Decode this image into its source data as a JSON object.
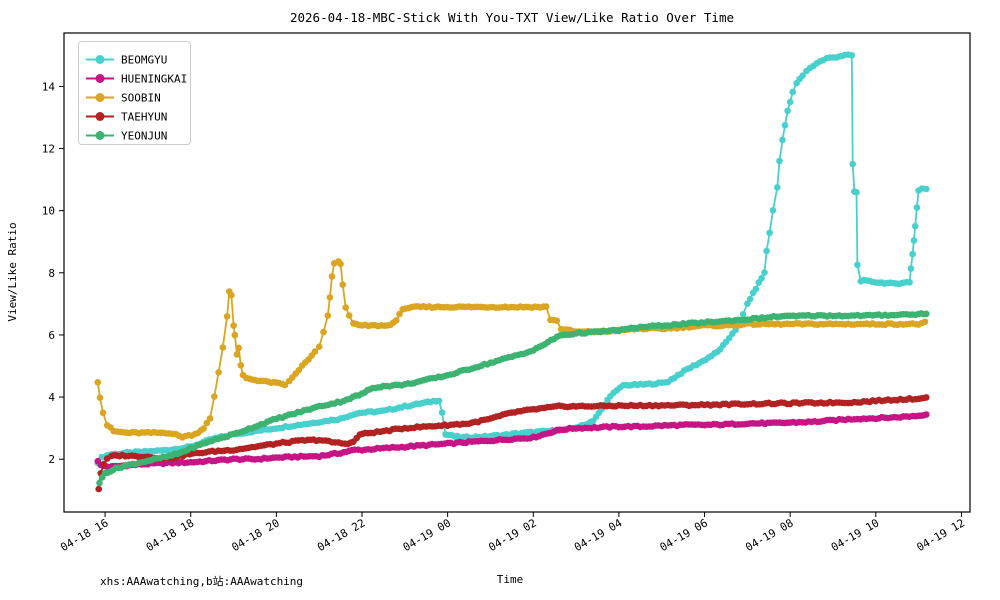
{
  "page": {
    "background": "#ffffff"
  },
  "chart_data": {
    "type": "line",
    "title": "2026-04-18-MBC-Stick With You-TXT View/Like Ratio Over Time",
    "xlabel": "Time",
    "ylabel": "View/Like Ratio",
    "watermark": "xhs:AAAwatching,b站:AAAwatching",
    "grid": false,
    "legend_position": "upper left",
    "marker": "circle",
    "x_unit": "hours since 2026-04-18 00:00",
    "x_range_hours": [
      15.04,
      36.2
    ],
    "y_axis": {
      "range": [
        0.3,
        15.72
      ],
      "ticks": [
        2,
        4,
        6,
        8,
        10,
        12,
        14
      ]
    },
    "x_axis": {
      "ticks": [
        {
          "hour": 16,
          "label": "04-18 16"
        },
        {
          "hour": 18,
          "label": "04-18 18"
        },
        {
          "hour": 20,
          "label": "04-18 20"
        },
        {
          "hour": 22,
          "label": "04-18 22"
        },
        {
          "hour": 24,
          "label": "04-19 00"
        },
        {
          "hour": 26,
          "label": "04-19 02"
        },
        {
          "hour": 28,
          "label": "04-19 04"
        },
        {
          "hour": 30,
          "label": "04-19 06"
        },
        {
          "hour": 32,
          "label": "04-19 08"
        },
        {
          "hour": 34,
          "label": "04-19 10"
        },
        {
          "hour": 36,
          "label": "04-19 12"
        }
      ]
    },
    "series": [
      {
        "name": "BEOMGYU",
        "color": "#48d1cc",
        "points": [
          [
            15.83,
            1.9
          ],
          [
            15.92,
            2.05
          ],
          [
            16.1,
            2.15
          ],
          [
            16.5,
            2.2
          ],
          [
            17.0,
            2.25
          ],
          [
            17.5,
            2.3
          ],
          [
            18.0,
            2.4
          ],
          [
            18.5,
            2.65
          ],
          [
            19.0,
            2.8
          ],
          [
            19.5,
            2.9
          ],
          [
            20.0,
            3.0
          ],
          [
            20.5,
            3.1
          ],
          [
            21.0,
            3.2
          ],
          [
            21.5,
            3.3
          ],
          [
            21.8,
            3.45
          ],
          [
            22.0,
            3.5
          ],
          [
            22.5,
            3.55
          ],
          [
            23.0,
            3.7
          ],
          [
            23.4,
            3.8
          ],
          [
            23.8,
            3.9
          ],
          [
            23.87,
            3.5
          ],
          [
            23.95,
            2.8
          ],
          [
            24.3,
            2.7
          ],
          [
            24.8,
            2.72
          ],
          [
            25.3,
            2.78
          ],
          [
            25.8,
            2.85
          ],
          [
            26.3,
            2.9
          ],
          [
            26.8,
            2.95
          ],
          [
            27.2,
            3.1
          ],
          [
            27.4,
            3.25
          ],
          [
            27.6,
            3.6
          ],
          [
            27.8,
            4.05
          ],
          [
            27.95,
            4.2
          ],
          [
            28.1,
            4.38
          ],
          [
            28.5,
            4.4
          ],
          [
            29.0,
            4.45
          ],
          [
            29.15,
            4.5
          ],
          [
            29.6,
            4.9
          ],
          [
            29.95,
            5.15
          ],
          [
            30.3,
            5.45
          ],
          [
            30.5,
            5.75
          ],
          [
            30.65,
            6.05
          ],
          [
            30.8,
            6.3
          ],
          [
            30.9,
            6.65
          ],
          [
            31.0,
            7.0
          ],
          [
            31.2,
            7.5
          ],
          [
            31.4,
            8.0
          ],
          [
            31.45,
            8.7
          ],
          [
            31.52,
            9.3
          ],
          [
            31.6,
            10.0
          ],
          [
            31.7,
            10.75
          ],
          [
            31.75,
            11.6
          ],
          [
            31.82,
            12.3
          ],
          [
            31.94,
            13.2
          ],
          [
            32.0,
            13.5
          ],
          [
            32.06,
            13.8
          ],
          [
            32.15,
            14.1
          ],
          [
            32.29,
            14.35
          ],
          [
            32.38,
            14.5
          ],
          [
            32.62,
            14.75
          ],
          [
            32.85,
            14.9
          ],
          [
            33.08,
            14.95
          ],
          [
            33.27,
            15.0
          ],
          [
            33.44,
            15.0
          ],
          [
            33.46,
            11.5
          ],
          [
            33.5,
            10.6
          ],
          [
            33.55,
            10.6
          ],
          [
            33.57,
            8.25
          ],
          [
            33.65,
            7.75
          ],
          [
            34.0,
            7.7
          ],
          [
            34.4,
            7.65
          ],
          [
            34.79,
            7.7
          ],
          [
            34.82,
            8.15
          ],
          [
            34.86,
            8.6
          ],
          [
            34.89,
            9.05
          ],
          [
            34.92,
            9.5
          ],
          [
            34.96,
            10.1
          ],
          [
            35.0,
            10.65
          ],
          [
            35.08,
            10.7
          ],
          [
            35.18,
            10.7
          ]
        ]
      },
      {
        "name": "HUENINGKAI",
        "color": "#c71585",
        "points": [
          [
            15.83,
            1.95
          ],
          [
            15.9,
            1.8
          ],
          [
            16.1,
            1.75
          ],
          [
            16.5,
            1.8
          ],
          [
            17.0,
            1.85
          ],
          [
            17.5,
            1.88
          ],
          [
            18.0,
            1.9
          ],
          [
            18.5,
            1.95
          ],
          [
            19.0,
            2.0
          ],
          [
            19.5,
            2.0
          ],
          [
            20.0,
            2.05
          ],
          [
            20.5,
            2.08
          ],
          [
            21.0,
            2.1
          ],
          [
            21.5,
            2.2
          ],
          [
            21.83,
            2.3
          ],
          [
            22.0,
            2.3
          ],
          [
            22.5,
            2.35
          ],
          [
            23.0,
            2.4
          ],
          [
            23.5,
            2.45
          ],
          [
            24.0,
            2.5
          ],
          [
            24.5,
            2.55
          ],
          [
            25.0,
            2.6
          ],
          [
            25.5,
            2.65
          ],
          [
            26.0,
            2.7
          ],
          [
            26.62,
            2.95
          ],
          [
            27.0,
            3.0
          ],
          [
            27.5,
            3.02
          ],
          [
            28.0,
            3.05
          ],
          [
            28.5,
            3.05
          ],
          [
            29.0,
            3.08
          ],
          [
            29.5,
            3.1
          ],
          [
            30.0,
            3.1
          ],
          [
            30.5,
            3.12
          ],
          [
            31.0,
            3.15
          ],
          [
            31.75,
            3.16
          ],
          [
            32.0,
            3.18
          ],
          [
            32.5,
            3.2
          ],
          [
            33.0,
            3.25
          ],
          [
            33.5,
            3.3
          ],
          [
            34.0,
            3.32
          ],
          [
            34.5,
            3.35
          ],
          [
            35.0,
            3.4
          ],
          [
            35.18,
            3.45
          ]
        ]
      },
      {
        "name": "SOOBIN",
        "color": "#daa520",
        "points": [
          [
            15.83,
            4.5
          ],
          [
            15.88,
            4.0
          ],
          [
            15.95,
            3.5
          ],
          [
            16.05,
            3.1
          ],
          [
            16.2,
            2.9
          ],
          [
            16.5,
            2.85
          ],
          [
            17.0,
            2.85
          ],
          [
            17.5,
            2.85
          ],
          [
            17.8,
            2.72
          ],
          [
            18.1,
            2.8
          ],
          [
            18.3,
            3.0
          ],
          [
            18.45,
            3.3
          ],
          [
            18.55,
            4.0
          ],
          [
            18.65,
            4.8
          ],
          [
            18.75,
            5.6
          ],
          [
            18.85,
            6.6
          ],
          [
            18.9,
            7.4
          ],
          [
            18.95,
            7.3
          ],
          [
            19.0,
            6.3
          ],
          [
            19.03,
            6.0
          ],
          [
            19.08,
            5.35
          ],
          [
            19.12,
            5.6
          ],
          [
            19.17,
            5.0
          ],
          [
            19.22,
            4.7
          ],
          [
            19.3,
            4.6
          ],
          [
            19.5,
            4.55
          ],
          [
            19.75,
            4.5
          ],
          [
            20.0,
            4.45
          ],
          [
            20.2,
            4.4
          ],
          [
            20.3,
            4.5
          ],
          [
            20.45,
            4.75
          ],
          [
            20.6,
            5.0
          ],
          [
            20.75,
            5.2
          ],
          [
            20.9,
            5.45
          ],
          [
            21.0,
            5.6
          ],
          [
            21.1,
            6.1
          ],
          [
            21.2,
            6.6
          ],
          [
            21.25,
            7.2
          ],
          [
            21.3,
            7.9
          ],
          [
            21.35,
            8.3
          ],
          [
            21.45,
            8.35
          ],
          [
            21.5,
            8.3
          ],
          [
            21.55,
            7.6
          ],
          [
            21.62,
            6.9
          ],
          [
            21.7,
            6.65
          ],
          [
            21.8,
            6.35
          ],
          [
            22.0,
            6.3
          ],
          [
            22.3,
            6.3
          ],
          [
            22.6,
            6.3
          ],
          [
            22.8,
            6.45
          ],
          [
            22.95,
            6.85
          ],
          [
            23.3,
            6.9
          ],
          [
            23.7,
            6.9
          ],
          [
            24.2,
            6.9
          ],
          [
            24.7,
            6.9
          ],
          [
            25.2,
            6.9
          ],
          [
            25.7,
            6.9
          ],
          [
            26.1,
            6.9
          ],
          [
            26.3,
            6.9
          ],
          [
            26.4,
            6.5
          ],
          [
            26.55,
            6.45
          ],
          [
            26.65,
            6.2
          ],
          [
            27.0,
            6.1
          ],
          [
            27.5,
            6.1
          ],
          [
            28.0,
            6.15
          ],
          [
            28.5,
            6.2
          ],
          [
            29.0,
            6.2
          ],
          [
            29.5,
            6.25
          ],
          [
            30.0,
            6.3
          ],
          [
            30.5,
            6.3
          ],
          [
            31.0,
            6.35
          ],
          [
            31.5,
            6.35
          ],
          [
            32.0,
            6.35
          ],
          [
            32.5,
            6.35
          ],
          [
            33.0,
            6.35
          ],
          [
            33.5,
            6.35
          ],
          [
            34.0,
            6.35
          ],
          [
            34.5,
            6.35
          ],
          [
            35.0,
            6.35
          ],
          [
            35.15,
            6.4
          ]
        ]
      },
      {
        "name": "TAEHYUN",
        "color": "#b22222",
        "points": [
          [
            15.85,
            1.05
          ],
          [
            15.9,
            1.55
          ],
          [
            15.97,
            1.85
          ],
          [
            16.05,
            2.0
          ],
          [
            16.15,
            2.1
          ],
          [
            16.4,
            2.12
          ],
          [
            16.7,
            2.1
          ],
          [
            17.0,
            2.08
          ],
          [
            17.3,
            2.02
          ],
          [
            17.6,
            2.05
          ],
          [
            17.9,
            2.15
          ],
          [
            18.2,
            2.2
          ],
          [
            18.5,
            2.25
          ],
          [
            19.0,
            2.3
          ],
          [
            19.5,
            2.4
          ],
          [
            20.0,
            2.5
          ],
          [
            20.3,
            2.55
          ],
          [
            20.6,
            2.6
          ],
          [
            21.0,
            2.62
          ],
          [
            21.3,
            2.55
          ],
          [
            21.6,
            2.5
          ],
          [
            21.8,
            2.55
          ],
          [
            21.95,
            2.8
          ],
          [
            22.2,
            2.85
          ],
          [
            22.5,
            2.9
          ],
          [
            23.0,
            3.0
          ],
          [
            23.5,
            3.05
          ],
          [
            24.0,
            3.1
          ],
          [
            24.5,
            3.15
          ],
          [
            25.0,
            3.3
          ],
          [
            25.5,
            3.5
          ],
          [
            26.0,
            3.6
          ],
          [
            26.6,
            3.7
          ],
          [
            27.0,
            3.7
          ],
          [
            28.0,
            3.72
          ],
          [
            29.0,
            3.73
          ],
          [
            30.0,
            3.75
          ],
          [
            31.0,
            3.78
          ],
          [
            32.0,
            3.8
          ],
          [
            33.0,
            3.82
          ],
          [
            33.5,
            3.83
          ],
          [
            34.0,
            3.88
          ],
          [
            34.5,
            3.92
          ],
          [
            35.0,
            3.95
          ],
          [
            35.18,
            4.0
          ]
        ]
      },
      {
        "name": "YEONJUN",
        "color": "#3cb371",
        "points": [
          [
            15.87,
            1.25
          ],
          [
            16.0,
            1.55
          ],
          [
            16.25,
            1.7
          ],
          [
            16.5,
            1.8
          ],
          [
            17.0,
            1.95
          ],
          [
            17.5,
            2.1
          ],
          [
            17.75,
            2.2
          ],
          [
            18.0,
            2.35
          ],
          [
            18.5,
            2.6
          ],
          [
            19.0,
            2.8
          ],
          [
            19.5,
            3.05
          ],
          [
            20.0,
            3.3
          ],
          [
            20.5,
            3.5
          ],
          [
            21.0,
            3.7
          ],
          [
            21.5,
            3.85
          ],
          [
            22.0,
            4.1
          ],
          [
            22.25,
            4.3
          ],
          [
            22.5,
            4.35
          ],
          [
            23.0,
            4.4
          ],
          [
            23.5,
            4.55
          ],
          [
            24.0,
            4.7
          ],
          [
            24.5,
            4.9
          ],
          [
            25.0,
            5.1
          ],
          [
            25.5,
            5.3
          ],
          [
            26.0,
            5.5
          ],
          [
            26.62,
            5.98
          ],
          [
            27.0,
            6.05
          ],
          [
            27.5,
            6.1
          ],
          [
            28.0,
            6.15
          ],
          [
            28.5,
            6.25
          ],
          [
            29.0,
            6.3
          ],
          [
            29.5,
            6.35
          ],
          [
            30.0,
            6.4
          ],
          [
            30.5,
            6.45
          ],
          [
            31.0,
            6.5
          ],
          [
            31.75,
            6.6
          ],
          [
            32.0,
            6.6
          ],
          [
            32.5,
            6.62
          ],
          [
            33.0,
            6.62
          ],
          [
            33.5,
            6.62
          ],
          [
            34.0,
            6.63
          ],
          [
            34.5,
            6.65
          ],
          [
            35.0,
            6.67
          ],
          [
            35.18,
            6.7
          ]
        ]
      }
    ]
  }
}
